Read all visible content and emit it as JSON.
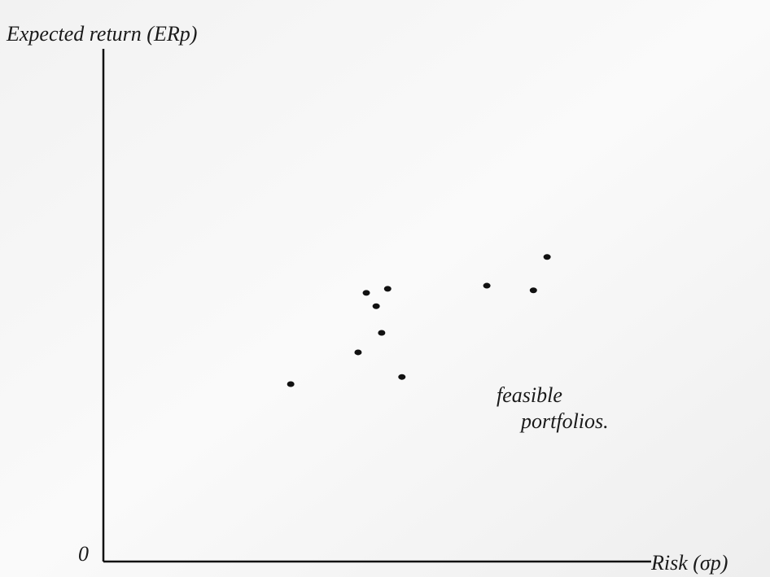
{
  "chart_data": {
    "type": "scatter",
    "y_label": "Expected return (ERp)",
    "x_label": "Risk (σp)",
    "origin_label": "0",
    "annotations": [
      "feasible",
      "portfolios."
    ],
    "xlim": [
      0,
      100
    ],
    "ylim": [
      0,
      100
    ],
    "color": "#111111",
    "series": [
      {
        "x": [
          81.0,
          70.0,
          78.5,
          48.0,
          51.9,
          49.8,
          50.8,
          46.5,
          54.5,
          34.2
        ],
        "values": [
          59.4,
          53.8,
          52.9,
          52.4,
          53.2,
          49.8,
          44.6,
          40.8,
          36.0,
          34.6
        ]
      }
    ]
  }
}
